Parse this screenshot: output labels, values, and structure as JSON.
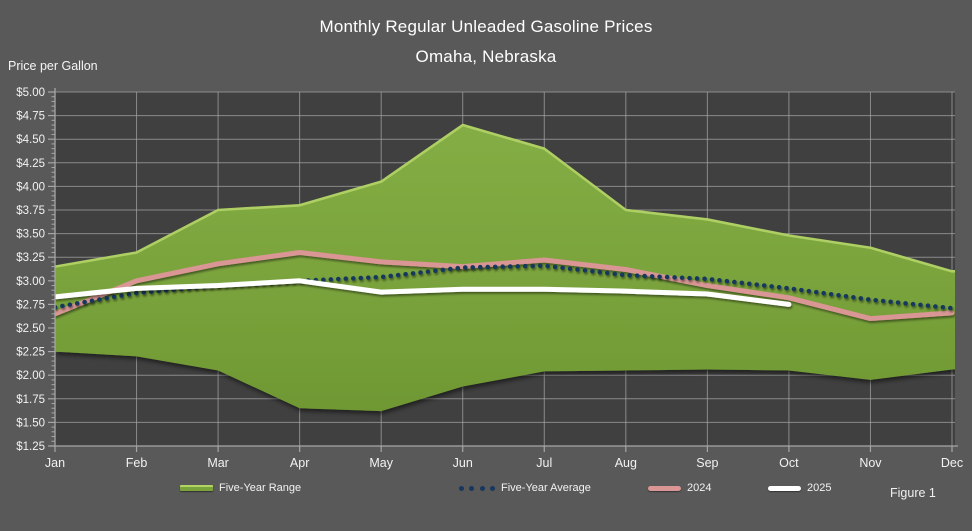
{
  "title": {
    "line1": "Monthly Regular Unleaded Gasoline Prices",
    "line2": "Omaha, Nebraska"
  },
  "axis_title": "Price per Gallon",
  "figure_caption": "Figure 1",
  "legend": {
    "items": [
      {
        "label": "Five-Year Range",
        "swatch": "band-swatch"
      },
      {
        "label": "Five-Year Average",
        "swatch": "dotted-swatch"
      },
      {
        "label": "2024",
        "swatch": "pink-line-swatch"
      },
      {
        "label": "2025",
        "swatch": "white-line-swatch"
      }
    ]
  },
  "colors": {
    "background": "#595959",
    "plot_background": "#404040",
    "gridline": "#a3a3a3",
    "axis": "#a6a6a6",
    "text": "#f2f2f2",
    "band_fill": "#7aa33c",
    "band_fill_top": "#84ad45",
    "band_fill_bottom": "#6f9833",
    "band_highlight": "#aecf63",
    "avg_dotted": "#17375d",
    "line_2024": "#d99694",
    "line_2025": "#ffffff"
  },
  "chart_data": {
    "type": "area",
    "title": "Monthly Regular Unleaded Gasoline Prices",
    "subtitle": "Omaha, Nebraska",
    "ylabel": "Price per Gallon",
    "xlabel": "",
    "ylim": [
      1.25,
      5.0
    ],
    "ytick_step": 0.25,
    "y_tick_labels": [
      "$5.00",
      "$4.75",
      "$4.50",
      "$4.25",
      "$4.00",
      "$3.75",
      "$3.50",
      "$3.25",
      "$3.00",
      "$2.75",
      "$2.50",
      "$2.25",
      "$2.00",
      "$1.75",
      "$1.50",
      "$1.25"
    ],
    "grid": true,
    "legend_position": "bottom",
    "categories": [
      "Jan",
      "Feb",
      "Mar",
      "Apr",
      "May",
      "Jun",
      "Jul",
      "Aug",
      "Sep",
      "Oct",
      "Nov",
      "Dec"
    ],
    "band": {
      "name": "Five-Year Range",
      "upper": [
        3.15,
        3.3,
        3.75,
        3.8,
        4.05,
        4.65,
        4.4,
        3.75,
        3.65,
        3.48,
        3.35,
        3.1
      ],
      "lower": [
        2.25,
        2.2,
        2.05,
        1.65,
        1.62,
        1.88,
        2.04,
        2.05,
        2.06,
        2.05,
        1.95,
        2.06
      ]
    },
    "series": [
      {
        "name": "Five-Year Average",
        "style": "dotted",
        "color": "#17375d",
        "values": [
          2.72,
          2.87,
          2.95,
          3.0,
          3.04,
          3.14,
          3.16,
          3.06,
          3.02,
          2.92,
          2.8,
          2.71
        ]
      },
      {
        "name": "2024",
        "style": "solid",
        "color": "#d99694",
        "values": [
          2.65,
          3.0,
          3.18,
          3.3,
          3.2,
          3.15,
          3.22,
          3.12,
          2.95,
          2.82,
          2.6,
          2.66
        ]
      },
      {
        "name": "2025",
        "style": "solid",
        "color": "#ffffff",
        "values": [
          2.83,
          2.92,
          2.95,
          3.0,
          2.88,
          2.91,
          2.91,
          2.89,
          2.86,
          2.75,
          null,
          null
        ]
      }
    ]
  }
}
